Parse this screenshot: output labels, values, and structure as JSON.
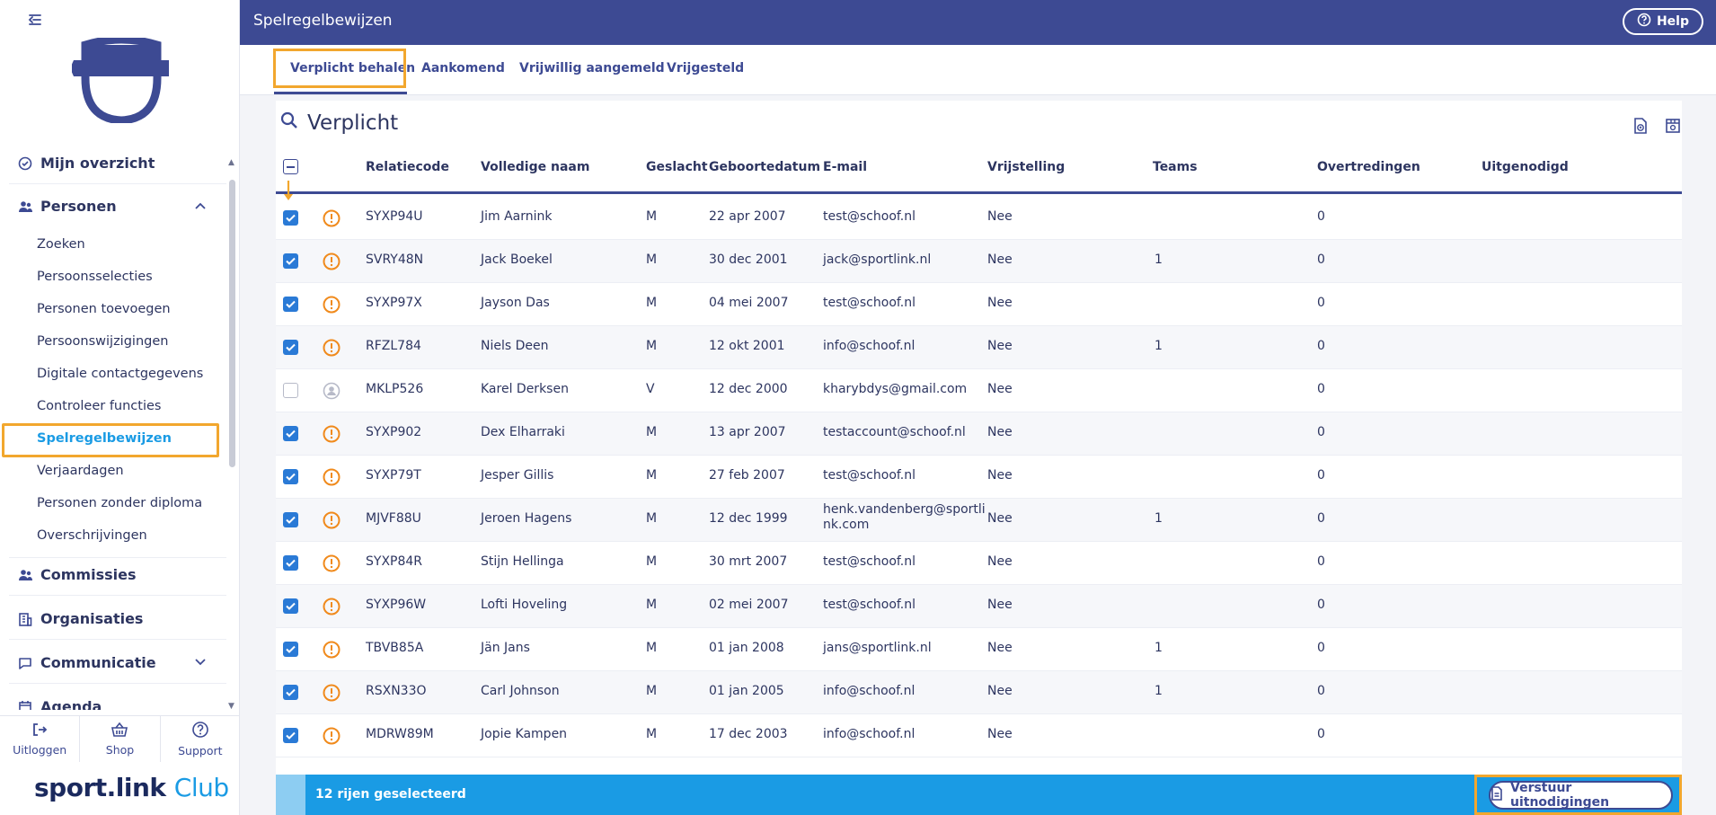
{
  "header": {
    "title": "Spelregelbewijzen",
    "help_label": "Help"
  },
  "tabs": [
    {
      "label": "Verplicht behalen"
    },
    {
      "label": "Aankomend"
    },
    {
      "label": "Vrijwillig aangemeld"
    },
    {
      "label": "Vrijgesteld"
    }
  ],
  "section": {
    "title": "Verplicht"
  },
  "sidebar": {
    "groups": {
      "overzicht": "Mijn overzicht",
      "personen": "Personen",
      "commissies": "Commissies",
      "organisaties": "Organisaties",
      "communicatie": "Communicatie",
      "agenda": "Agenda"
    },
    "items": [
      {
        "label": "Zoeken"
      },
      {
        "label": "Persoonsselecties"
      },
      {
        "label": "Personen toevoegen"
      },
      {
        "label": "Persoonswijzigingen"
      },
      {
        "label": "Digitale contactgegevens"
      },
      {
        "label": "Controleer functies"
      },
      {
        "label": "Spelregelbewijzen"
      },
      {
        "label": "Verjaardagen"
      },
      {
        "label": "Personen zonder diploma"
      },
      {
        "label": "Overschrijvingen"
      }
    ],
    "footer": {
      "logout": "Uitloggen",
      "shop": "Shop",
      "support": "Support"
    },
    "brand": {
      "sport": "sport.",
      "link": "link",
      "club": "Club"
    }
  },
  "table": {
    "columns": [
      "Relatiecode",
      "Volledige naam",
      "Geslacht",
      "Geboortedatum",
      "E-mail",
      "Vrijstelling",
      "Teams",
      "Overtredingen",
      "Uitgenodigd"
    ],
    "rows": [
      {
        "checked": true,
        "status": "warning",
        "code": "SYXP94U",
        "name": "Jim Aarnink",
        "gender": "M",
        "dob": "22 apr 2007",
        "email": "test@schoof.nl",
        "email2": "",
        "vrij": "Nee",
        "teams": "",
        "overtr": "0",
        "uitg": ""
      },
      {
        "checked": true,
        "status": "warning",
        "code": "SVRY48N",
        "name": "Jack Boekel",
        "gender": "M",
        "dob": "30 dec 2001",
        "email": "jack@sportlink.nl",
        "email2": "",
        "vrij": "Nee",
        "teams": "1",
        "overtr": "0",
        "uitg": ""
      },
      {
        "checked": true,
        "status": "warning",
        "code": "SYXP97X",
        "name": "Jayson Das",
        "gender": "M",
        "dob": "04 mei 2007",
        "email": "test@schoof.nl",
        "email2": "",
        "vrij": "Nee",
        "teams": "",
        "overtr": "0",
        "uitg": ""
      },
      {
        "checked": true,
        "status": "warning",
        "code": "RFZL784",
        "name": "Niels Deen",
        "gender": "M",
        "dob": "12 okt 2001",
        "email": "info@schoof.nl",
        "email2": "",
        "vrij": "Nee",
        "teams": "1",
        "overtr": "0",
        "uitg": ""
      },
      {
        "checked": false,
        "status": "person",
        "code": "MKLP526",
        "name": "Karel Derksen",
        "gender": "V",
        "dob": "12 dec 2000",
        "email": "kharybdys@gmail.com",
        "email2": "",
        "vrij": "Nee",
        "teams": "",
        "overtr": "0",
        "uitg": ""
      },
      {
        "checked": true,
        "status": "warning",
        "code": "SYXP902",
        "name": "Dex Elharraki",
        "gender": "M",
        "dob": "13 apr 2007",
        "email": "testaccount@schoof.nl",
        "email2": "",
        "vrij": "Nee",
        "teams": "",
        "overtr": "0",
        "uitg": ""
      },
      {
        "checked": true,
        "status": "warning",
        "code": "SYXP79T",
        "name": "Jesper Gillis",
        "gender": "M",
        "dob": "27 feb 2007",
        "email": "test@schoof.nl",
        "email2": "",
        "vrij": "Nee",
        "teams": "",
        "overtr": "0",
        "uitg": ""
      },
      {
        "checked": true,
        "status": "warning",
        "code": "MJVF88U",
        "name": "Jeroen Hagens",
        "gender": "M",
        "dob": "12 dec 1999",
        "email": "henk.vandenberg@sportli",
        "email2": "nk.com",
        "vrij": "Nee",
        "teams": "1",
        "overtr": "0",
        "uitg": ""
      },
      {
        "checked": true,
        "status": "warning",
        "code": "SYXP84R",
        "name": "Stijn Hellinga",
        "gender": "M",
        "dob": "30 mrt 2007",
        "email": "test@schoof.nl",
        "email2": "",
        "vrij": "Nee",
        "teams": "",
        "overtr": "0",
        "uitg": ""
      },
      {
        "checked": true,
        "status": "warning",
        "code": "SYXP96W",
        "name": "Lofti Hoveling",
        "gender": "M",
        "dob": "02 mei 2007",
        "email": "test@schoof.nl",
        "email2": "",
        "vrij": "Nee",
        "teams": "",
        "overtr": "0",
        "uitg": ""
      },
      {
        "checked": true,
        "status": "warning",
        "code": "TBVB85A",
        "name": "Jän Jans",
        "gender": "M",
        "dob": "01 jan 2008",
        "email": "jans@sportlink.nl",
        "email2": "",
        "vrij": "Nee",
        "teams": "1",
        "overtr": "0",
        "uitg": ""
      },
      {
        "checked": true,
        "status": "warning",
        "code": "RSXN33O",
        "name": "Carl Johnson",
        "gender": "M",
        "dob": "01 jan 2005",
        "email": "info@schoof.nl",
        "email2": "",
        "vrij": "Nee",
        "teams": "1",
        "overtr": "0",
        "uitg": ""
      },
      {
        "checked": true,
        "status": "warning",
        "code": "MDRW89M",
        "name": "Jopie Kampen",
        "gender": "M",
        "dob": "17 dec 2003",
        "email": "info@schoof.nl",
        "email2": "",
        "vrij": "Nee",
        "teams": "",
        "overtr": "0",
        "uitg": ""
      }
    ]
  },
  "selection": {
    "count_text": "12 rijen geselecteerd",
    "send_label": "Verstuur uitnodigingen"
  },
  "colors": {
    "primary": "#3d4a93",
    "accent": "#1a9be4",
    "warning": "#f08a1c",
    "highlight": "#f2a72e"
  }
}
